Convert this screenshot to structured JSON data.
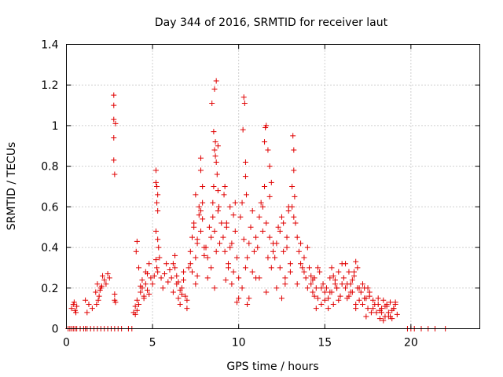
{
  "chart_data": {
    "type": "scatter",
    "title": "Day 344 of 2016, SRMTID for receiver laut",
    "xlabel": "GPS time / hours",
    "ylabel": "SRMTID / TECUs",
    "xlim": [
      0,
      24
    ],
    "ylim": [
      0,
      1.4
    ],
    "xticks": [
      0,
      5,
      10,
      15,
      20
    ],
    "yticks": [
      0,
      0.2,
      0.4,
      0.6,
      0.8,
      1,
      1.2,
      1.4
    ],
    "ytick_labels": [
      "0",
      "0.2",
      "0.4",
      "0.6",
      "0.8",
      "1",
      "1.2",
      "1.4"
    ],
    "grid": true,
    "marker": "plus",
    "series_color": "#e00000",
    "series": [
      {
        "name": "SRMTID",
        "x": [
          0.1,
          0.2,
          0.3,
          0.4,
          0.5,
          0.6,
          0.8,
          1.0,
          1.1,
          1.2,
          1.4,
          1.6,
          1.8,
          2.0,
          2.2,
          2.4,
          2.6,
          2.8,
          3.0,
          3.2,
          3.6,
          3.8,
          0.3,
          0.4,
          0.5,
          0.6,
          0.45,
          0.55,
          1.1,
          1.2,
          1.3,
          1.5,
          1.7,
          1.8,
          1.9,
          2.0,
          2.1,
          2.2,
          2.3,
          2.4,
          2.5,
          1.75,
          1.85,
          1.95,
          2.05,
          2.75,
          2.75,
          2.75,
          2.75,
          2.75,
          2.8,
          2.8,
          2.8,
          2.85,
          2.85,
          3.9,
          4.0,
          4.1,
          4.2,
          4.3,
          4.4,
          4.5,
          4.6,
          4.7,
          4.8,
          4.9,
          4.0,
          4.2,
          4.4,
          4.6,
          4.8,
          4.1,
          4.3,
          4.5,
          4.7,
          4.05,
          4.1,
          5.0,
          5.1,
          5.2,
          5.2,
          5.25,
          5.25,
          5.3,
          5.3,
          5.35,
          5.2,
          5.25,
          5.3,
          5.4,
          5.5,
          5.6,
          5.7,
          5.8,
          5.9,
          6.0,
          5.2,
          5.3,
          6.1,
          6.2,
          6.3,
          6.4,
          6.5,
          6.6,
          6.7,
          6.8,
          6.9,
          7.0,
          6.2,
          6.4,
          6.6,
          6.8,
          7.0,
          6.3,
          6.5,
          6.7,
          7.1,
          7.2,
          7.3,
          7.4,
          7.5,
          7.6,
          7.7,
          7.8,
          7.9,
          8.0,
          7.2,
          7.4,
          7.6,
          7.8,
          8.0,
          7.3,
          7.5,
          7.7,
          7.9,
          7.8,
          7.8,
          7.9,
          7.5,
          7.6,
          8.1,
          8.2,
          8.3,
          8.4,
          8.5,
          8.55,
          8.6,
          8.6,
          8.65,
          8.7,
          8.7,
          8.75,
          8.8,
          8.8,
          8.85,
          8.5,
          8.6,
          8.7,
          8.9,
          9.0,
          8.2,
          8.4,
          8.6,
          8.8,
          8.45,
          8.55,
          8.65,
          9.1,
          9.2,
          9.3,
          9.4,
          9.5,
          9.6,
          9.7,
          9.8,
          9.9,
          10.0,
          9.2,
          9.4,
          9.6,
          9.8,
          10.0,
          9.3,
          9.5,
          9.7,
          9.9,
          9.15,
          9.25,
          10.1,
          10.2,
          10.25,
          10.3,
          10.35,
          10.4,
          10.4,
          10.45,
          10.5,
          10.6,
          10.7,
          10.8,
          10.9,
          11.0,
          10.2,
          10.4,
          10.6,
          10.8,
          11.0,
          10.3,
          10.5,
          11.1,
          11.2,
          11.3,
          11.4,
          11.5,
          11.6,
          11.7,
          11.8,
          11.9,
          12.0,
          11.2,
          11.4,
          11.6,
          11.8,
          12.0,
          11.5,
          11.55,
          11.6,
          11.7,
          11.8,
          11.9,
          12.1,
          12.2,
          12.3,
          12.4,
          12.5,
          12.6,
          12.7,
          12.8,
          12.9,
          13.0,
          12.2,
          12.4,
          12.6,
          12.8,
          13.0,
          12.5,
          12.7,
          12.9,
          13.1,
          13.15,
          13.2,
          13.25,
          13.3,
          13.4,
          13.5,
          13.6,
          13.7,
          13.8,
          13.9,
          14.0,
          13.2,
          13.4,
          13.6,
          13.8,
          14.0,
          13.1,
          13.2,
          14.1,
          14.2,
          14.3,
          14.4,
          14.5,
          14.6,
          14.7,
          14.8,
          14.9,
          15.0,
          14.2,
          14.4,
          14.6,
          14.8,
          15.0,
          14.3,
          14.5,
          15.1,
          15.2,
          15.3,
          15.4,
          15.5,
          15.6,
          15.7,
          15.8,
          15.9,
          16.0,
          15.2,
          15.4,
          15.6,
          15.8,
          16.0,
          15.3,
          15.5,
          15.7,
          16.1,
          16.2,
          16.3,
          16.4,
          16.5,
          16.6,
          16.7,
          16.8,
          16.9,
          17.0,
          16.2,
          16.4,
          16.6,
          16.8,
          17.0,
          16.3,
          16.5,
          16.7,
          16.9,
          16.8,
          17.1,
          17.2,
          17.3,
          17.4,
          17.5,
          17.6,
          17.7,
          17.8,
          17.9,
          17.2,
          17.4,
          17.6,
          17.8,
          17.3,
          17.5,
          18.0,
          18.1,
          18.2,
          18.3,
          18.4,
          18.5,
          18.6,
          18.7,
          18.8,
          18.9,
          19.0,
          19.1,
          19.2,
          18.2,
          18.4,
          18.6,
          18.8,
          19.0,
          18.1,
          18.3,
          18.5,
          18.7,
          18.9,
          19.1,
          19.8,
          20.0,
          20.2,
          20.6,
          21.0,
          21.4,
          22.0
        ],
        "y": [
          0.0,
          0.0,
          0.0,
          0.0,
          0.0,
          0.0,
          0.0,
          0.0,
          0.0,
          0.0,
          0.0,
          0.0,
          0.0,
          0.0,
          0.0,
          0.0,
          0.0,
          0.0,
          0.0,
          0.0,
          0.0,
          0.0,
          0.1,
          0.12,
          0.09,
          0.11,
          0.13,
          0.08,
          0.14,
          0.08,
          0.12,
          0.1,
          0.18,
          0.22,
          0.16,
          0.2,
          0.26,
          0.24,
          0.22,
          0.27,
          0.25,
          0.12,
          0.14,
          0.19,
          0.21,
          1.15,
          1.1,
          1.03,
          0.94,
          0.83,
          0.76,
          0.17,
          0.14,
          1.01,
          0.13,
          0.08,
          0.07,
          0.14,
          0.12,
          0.18,
          0.2,
          0.15,
          0.22,
          0.19,
          0.17,
          0.25,
          0.11,
          0.3,
          0.24,
          0.28,
          0.32,
          0.43,
          0.21,
          0.16,
          0.27,
          0.38,
          0.09,
          0.22,
          0.26,
          0.78,
          0.72,
          0.7,
          0.62,
          0.58,
          0.44,
          0.4,
          0.34,
          0.3,
          0.28,
          0.35,
          0.25,
          0.2,
          0.27,
          0.32,
          0.23,
          0.29,
          0.48,
          0.66,
          0.25,
          0.18,
          0.3,
          0.22,
          0.15,
          0.12,
          0.2,
          0.28,
          0.16,
          0.1,
          0.32,
          0.26,
          0.19,
          0.24,
          0.14,
          0.36,
          0.23,
          0.17,
          0.3,
          0.38,
          0.45,
          0.5,
          0.35,
          0.42,
          0.56,
          0.48,
          0.62,
          0.4,
          0.32,
          0.52,
          0.44,
          0.58,
          0.36,
          0.28,
          0.66,
          0.6,
          0.7,
          0.84,
          0.78,
          0.54,
          0.22,
          0.26,
          0.4,
          0.35,
          0.5,
          0.45,
          0.62,
          0.7,
          0.88,
          1.18,
          0.92,
          0.82,
          1.22,
          0.76,
          0.68,
          0.9,
          0.6,
          0.55,
          0.48,
          0.38,
          0.42,
          0.52,
          0.25,
          0.3,
          0.2,
          0.58,
          1.11,
          0.97,
          0.85,
          0.45,
          0.38,
          0.52,
          0.3,
          0.6,
          0.42,
          0.56,
          0.48,
          0.35,
          0.25,
          0.7,
          0.32,
          0.22,
          0.62,
          0.15,
          0.5,
          0.4,
          0.28,
          0.13,
          0.66,
          0.24,
          0.55,
          0.62,
          0.98,
          1.14,
          1.11,
          0.75,
          0.82,
          0.66,
          0.35,
          0.42,
          0.5,
          0.28,
          0.38,
          0.45,
          0.2,
          0.3,
          0.15,
          0.58,
          0.25,
          0.44,
          0.12,
          0.4,
          0.55,
          0.62,
          0.48,
          0.7,
          0.52,
          0.35,
          0.65,
          0.3,
          0.42,
          0.25,
          0.6,
          0.18,
          0.45,
          0.38,
          0.92,
          0.99,
          1.0,
          0.88,
          0.8,
          0.72,
          0.35,
          0.42,
          0.5,
          0.3,
          0.55,
          0.38,
          0.25,
          0.45,
          0.6,
          0.32,
          0.2,
          0.48,
          0.52,
          0.4,
          0.28,
          0.15,
          0.22,
          0.58,
          0.7,
          0.95,
          0.88,
          0.65,
          0.52,
          0.45,
          0.38,
          0.42,
          0.3,
          0.35,
          0.25,
          0.4,
          0.78,
          0.22,
          0.32,
          0.28,
          0.2,
          0.6,
          0.55,
          0.3,
          0.22,
          0.18,
          0.25,
          0.2,
          0.15,
          0.28,
          0.12,
          0.22,
          0.18,
          0.26,
          0.16,
          0.3,
          0.2,
          0.14,
          0.24,
          0.1,
          0.2,
          0.15,
          0.25,
          0.18,
          0.12,
          0.22,
          0.2,
          0.28,
          0.16,
          0.22,
          0.1,
          0.3,
          0.24,
          0.14,
          0.32,
          0.18,
          0.26,
          0.2,
          0.25,
          0.2,
          0.15,
          0.28,
          0.22,
          0.18,
          0.26,
          0.12,
          0.3,
          0.2,
          0.32,
          0.16,
          0.24,
          0.1,
          0.14,
          0.22,
          0.18,
          0.28,
          0.2,
          0.33,
          0.18,
          0.12,
          0.2,
          0.15,
          0.1,
          0.16,
          0.08,
          0.14,
          0.12,
          0.22,
          0.06,
          0.18,
          0.1,
          0.15,
          0.2,
          0.08,
          0.12,
          0.05,
          0.1,
          0.14,
          0.06,
          0.11,
          0.08,
          0.13,
          0.05,
          0.1,
          0.12,
          0.07,
          0.09,
          0.04,
          0.12,
          0.06,
          0.1,
          0.15,
          0.08,
          0.11,
          0.06,
          0.09,
          0.13,
          0.0,
          0.0,
          0.0,
          0.0,
          0.0,
          0.0,
          0.0
        ]
      }
    ]
  }
}
